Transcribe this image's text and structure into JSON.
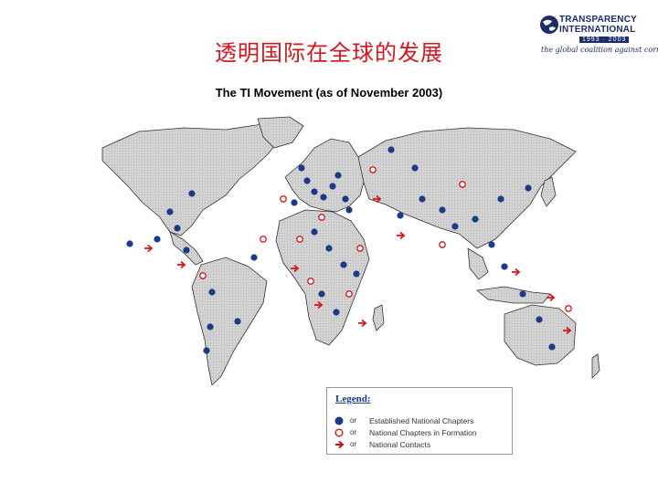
{
  "title_cn": "透明国际在全球的发展",
  "subtitle": "The TI Movement (as of November 2003)",
  "logo": {
    "org_line1": "TRANSPARENCY",
    "org_line2": "INTERNATIONAL",
    "years": "1993 · 2003",
    "tagline": "the global coalition against corruption"
  },
  "legend": {
    "title": "Legend:",
    "connector": "or",
    "items": [
      {
        "label": "Established National Chapters",
        "color": "#1b3a8a",
        "style": "solid"
      },
      {
        "label": "National Chapters in Formation",
        "color": "#d8141c",
        "style": "hollow"
      },
      {
        "label": "National Contacts",
        "color": "#c0141c",
        "style": "arrow"
      }
    ]
  },
  "colors": {
    "land": "#d2d2d2",
    "ocean": "#ffffff",
    "chapter": "#1b3a8a",
    "formation": "#d8141c"
  }
}
